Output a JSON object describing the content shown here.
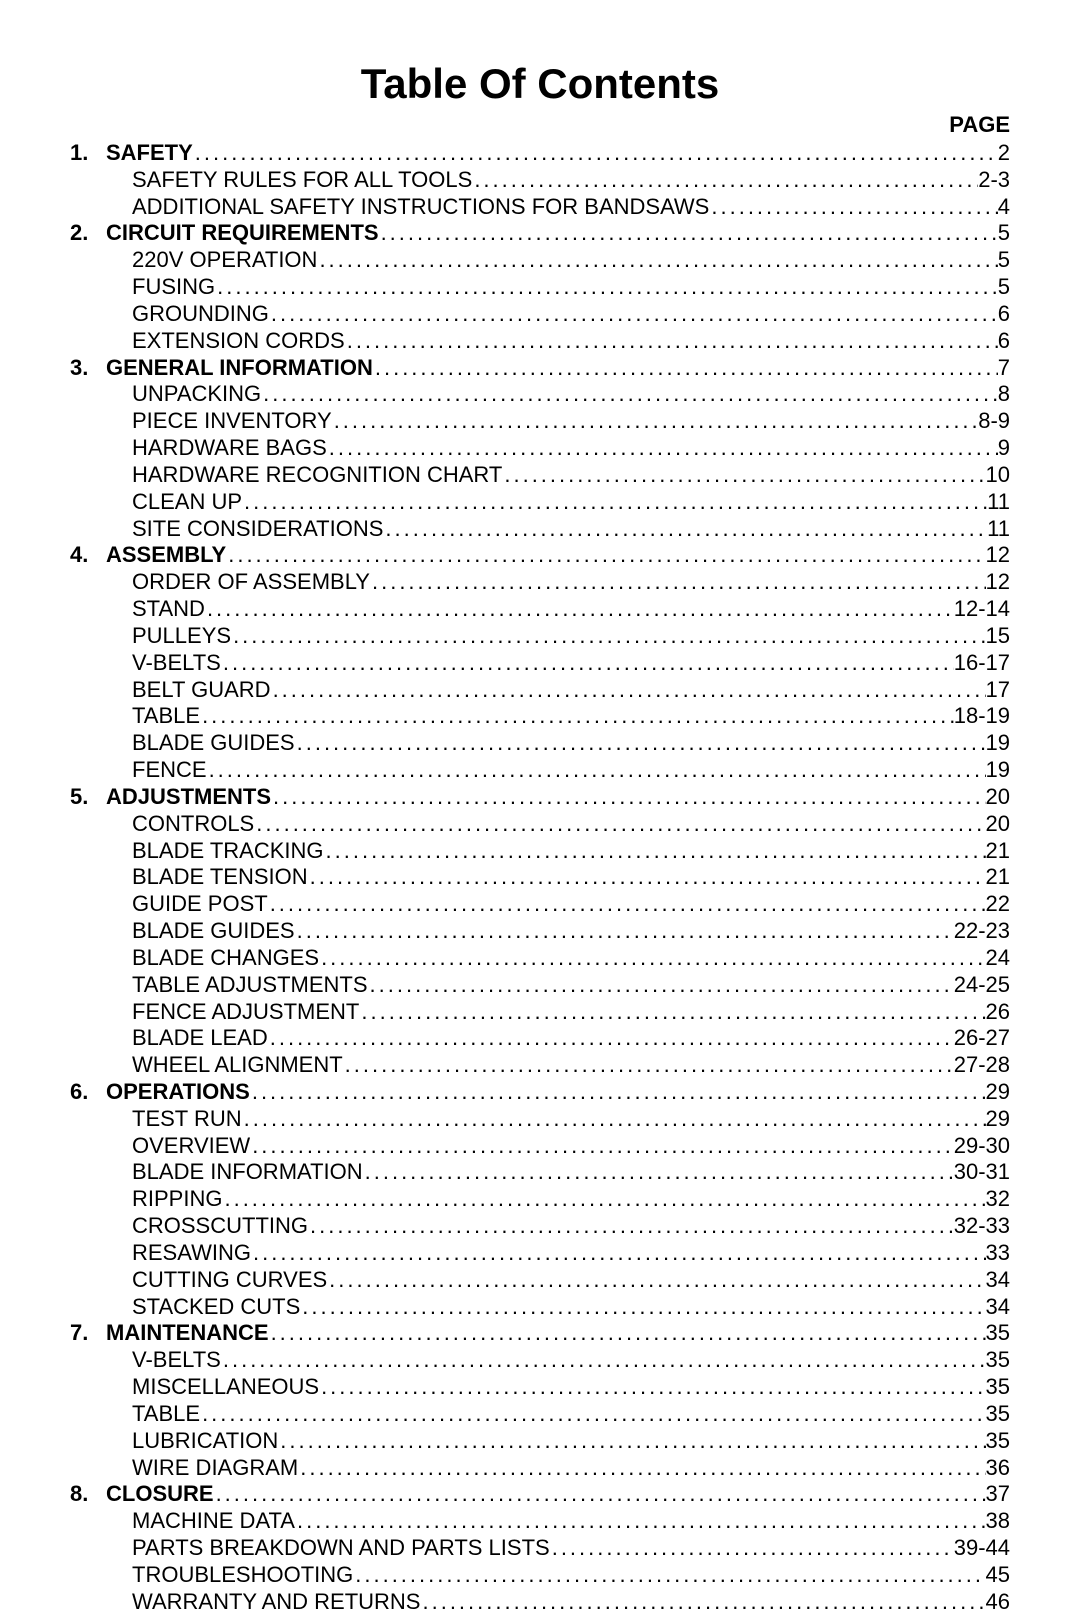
{
  "title": "Table Of Contents",
  "page_header": "PAGE",
  "typography": {
    "title_fontsize": 42,
    "line_fontsize": 22,
    "font_family": "Arial",
    "line_height": 1.22
  },
  "sections": [
    {
      "num": "1.",
      "label": "SAFETY",
      "page": "2",
      "subs": [
        {
          "label": "SAFETY RULES FOR ALL TOOLS",
          "page": "2-3"
        },
        {
          "label": "ADDITIONAL SAFETY INSTRUCTIONS FOR BANDSAWS",
          "page": "4"
        }
      ]
    },
    {
      "num": "2.",
      "label": "CIRCUIT REQUIREMENTS",
      "page": "5",
      "subs": [
        {
          "label": "220V OPERATION",
          "page": "5"
        },
        {
          "label": "FUSING",
          "page": "5"
        },
        {
          "label": "GROUNDING",
          "page": "6"
        },
        {
          "label": "EXTENSION CORDS",
          "page": "6"
        }
      ]
    },
    {
      "num": "3.",
      "label": "GENERAL INFORMATION",
      "page": "7",
      "subs": [
        {
          "label": "UNPACKING",
          "page": "8"
        },
        {
          "label": "PIECE INVENTORY",
          "page": "8-9"
        },
        {
          "label": "HARDWARE BAGS",
          "page": "9"
        },
        {
          "label": "HARDWARE RECOGNITION CHART",
          "page": "10"
        },
        {
          "label": "CLEAN UP",
          "page": "11"
        },
        {
          "label": "SITE CONSIDERATIONS",
          "page": "11"
        }
      ]
    },
    {
      "num": "4.",
      "label": "ASSEMBLY",
      "page": "12",
      "subs": [
        {
          "label": "ORDER OF ASSEMBLY",
          "page": "12"
        },
        {
          "label": "STAND",
          "page": "12-14"
        },
        {
          "label": "PULLEYS",
          "page": "15"
        },
        {
          "label": "V-BELTS",
          "page": "16-17"
        },
        {
          "label": "BELT GUARD",
          "page": "17"
        },
        {
          "label": "TABLE",
          "page": "18-19"
        },
        {
          "label": "BLADE GUIDES",
          "page": "19"
        },
        {
          "label": "FENCE",
          "page": "19"
        }
      ]
    },
    {
      "num": "5.",
      "label": "ADJUSTMENTS",
      "page": "20",
      "subs": [
        {
          "label": "CONTROLS",
          "page": "20"
        },
        {
          "label": "BLADE TRACKING",
          "page": "21"
        },
        {
          "label": "BLADE TENSION",
          "page": "21"
        },
        {
          "label": "GUIDE POST",
          "page": "22"
        },
        {
          "label": "BLADE GUIDES",
          "page": "22-23"
        },
        {
          "label": "BLADE CHANGES",
          "page": "24"
        },
        {
          "label": "TABLE ADJUSTMENTS",
          "page": "24-25"
        },
        {
          "label": "FENCE ADJUSTMENT",
          "page": "26"
        },
        {
          "label": "BLADE LEAD",
          "page": "26-27"
        },
        {
          "label": "WHEEL ALIGNMENT",
          "page": "27-28"
        }
      ]
    },
    {
      "num": "6.",
      "label": "OPERATIONS",
      "page": "29",
      "subs": [
        {
          "label": "TEST RUN",
          "page": "29"
        },
        {
          "label": "OVERVIEW",
          "page": "29-30"
        },
        {
          "label": "BLADE INFORMATION",
          "page": "30-31"
        },
        {
          "label": "RIPPING",
          "page": "32"
        },
        {
          "label": "CROSSCUTTING",
          "page": "32-33"
        },
        {
          "label": "RESAWING",
          "page": "33"
        },
        {
          "label": "CUTTING CURVES",
          "page": "34"
        },
        {
          "label": "STACKED CUTS",
          "page": "34"
        }
      ]
    },
    {
      "num": "7.",
      "label": "MAINTENANCE",
      "page": "35",
      "subs": [
        {
          "label": "V-BELTS",
          "page": "35"
        },
        {
          "label": "MISCELLANEOUS",
          "page": "35"
        },
        {
          "label": "TABLE",
          "page": "35"
        },
        {
          "label": "LUBRICATION",
          "page": "35"
        },
        {
          "label": "WIRE DIAGRAM",
          "page": "36"
        }
      ]
    },
    {
      "num": "8.",
      "label": "CLOSURE",
      "page": "37",
      "subs": [
        {
          "label": "MACHINE DATA",
          "page": "38"
        },
        {
          "label": "PARTS BREAKDOWN AND PARTS LISTS",
          "page": "39-44"
        },
        {
          "label": "TROUBLESHOOTING",
          "page": "45"
        },
        {
          "label": "WARRANTY AND RETURNS",
          "page": "46"
        }
      ]
    }
  ]
}
